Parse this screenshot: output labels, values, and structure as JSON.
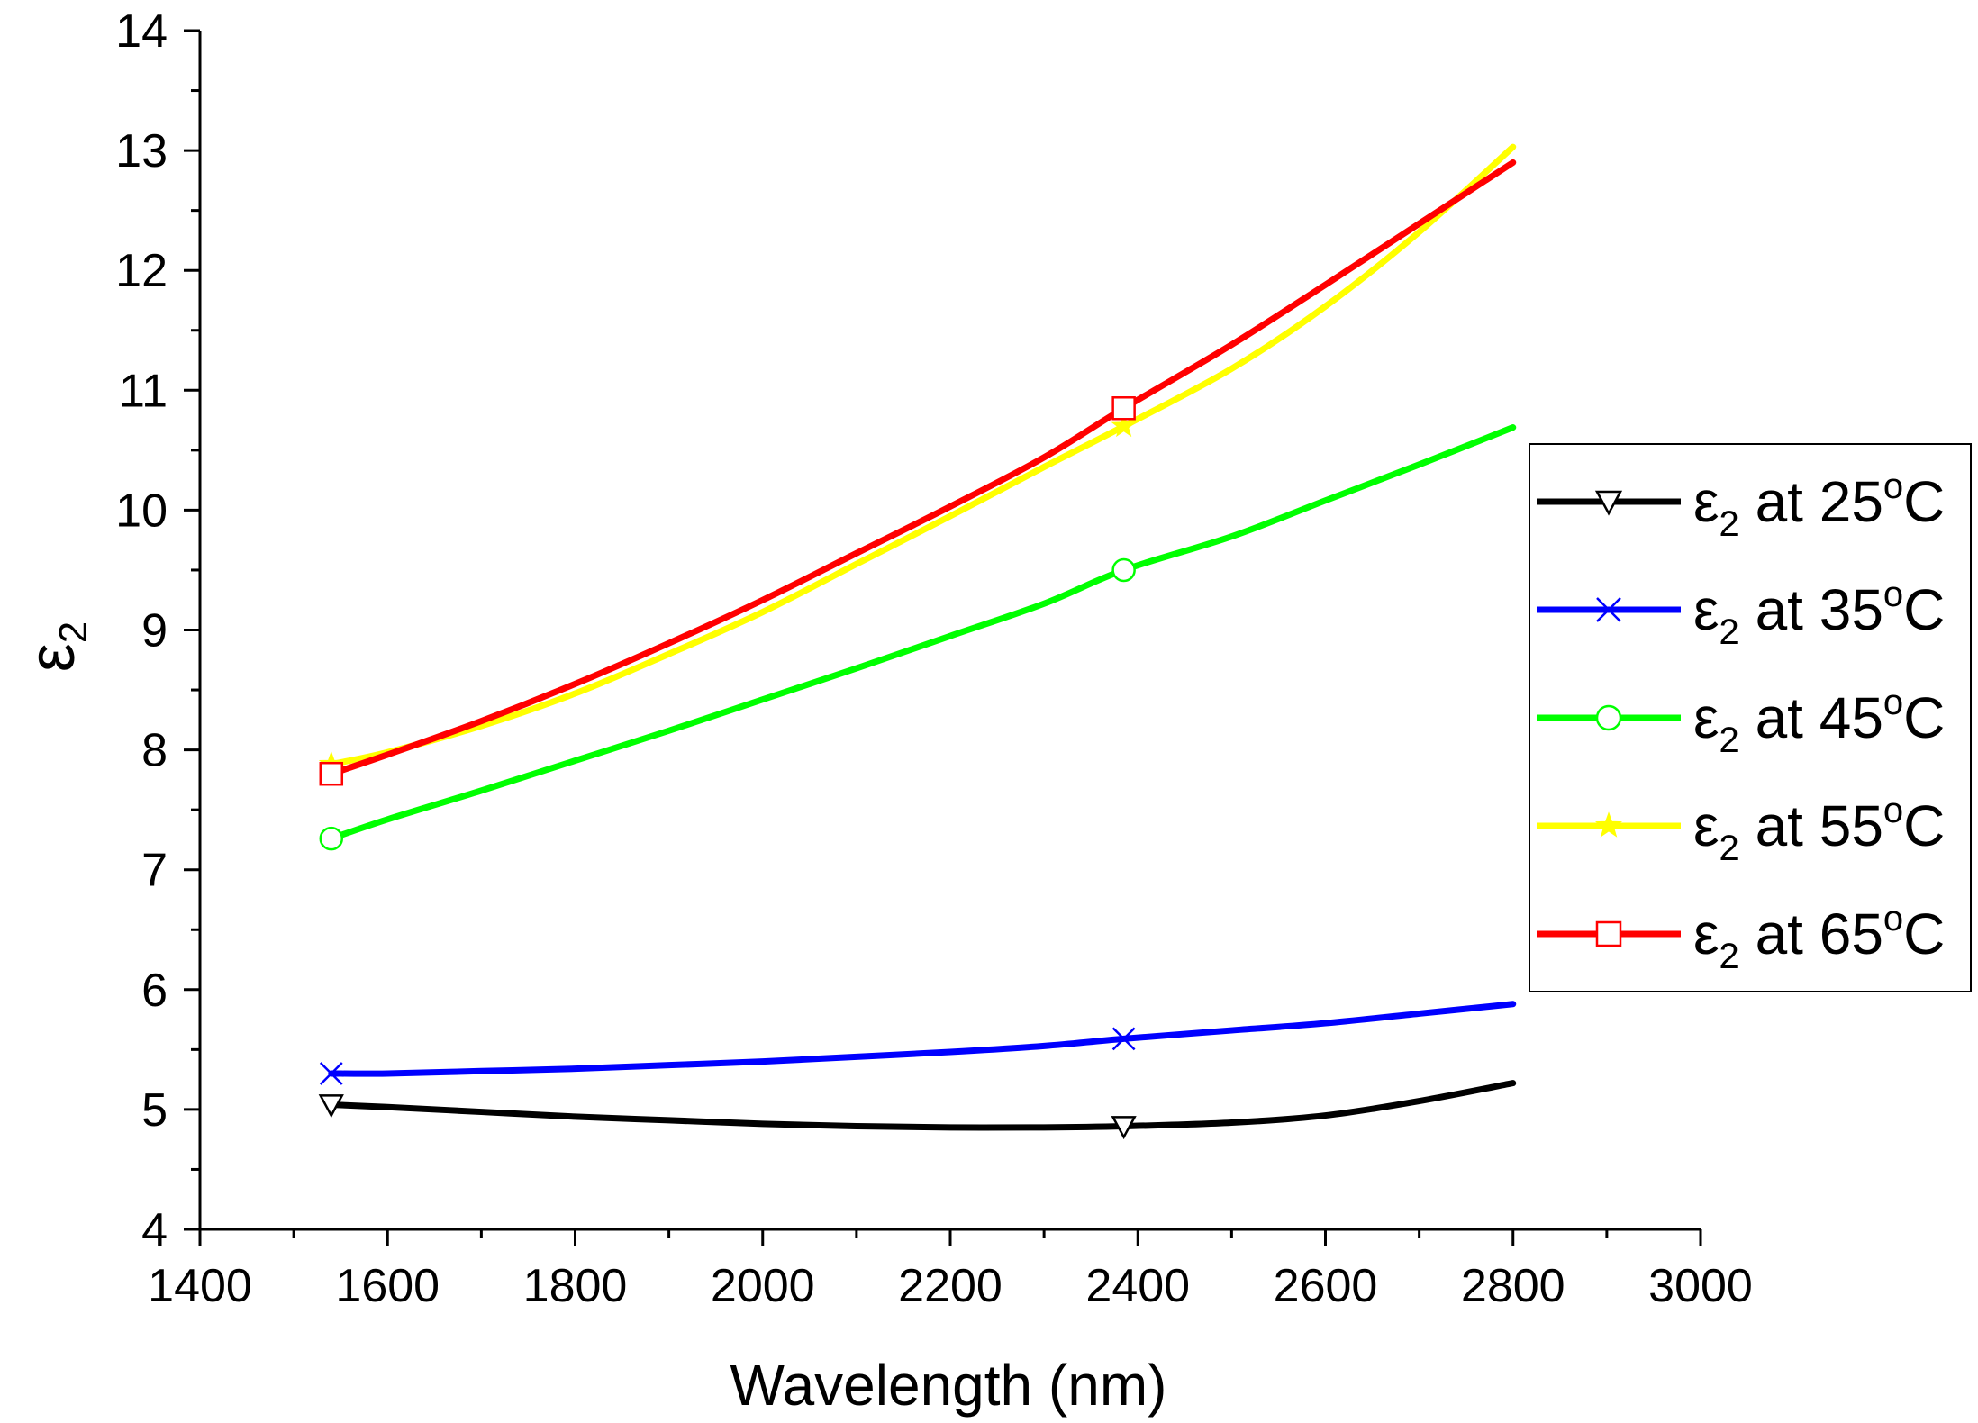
{
  "chart_data": {
    "type": "line",
    "title": "",
    "xlabel": "Wavelength (nm)",
    "ylabel": {
      "main": "ε",
      "sub": "2"
    },
    "xlim": [
      1400,
      3000
    ],
    "ylim": [
      4,
      14
    ],
    "x_ticks": [
      "1400",
      "1600",
      "1800",
      "2000",
      "2200",
      "2400",
      "2600",
      "2800",
      "3000"
    ],
    "y_ticks": [
      "4",
      "5",
      "6",
      "7",
      "8",
      "9",
      "10",
      "11",
      "12",
      "13",
      "14"
    ],
    "x_marker_positions": [
      1540,
      2385
    ],
    "legend_position": "right",
    "series": [
      {
        "name": "ε2 at 25°C",
        "label": {
          "eps": "ε",
          "sub": "2",
          "at": " at 25",
          "deg": "o",
          "unit": "C"
        },
        "color": "#000000",
        "marker": "triangle-down",
        "x": [
          1540,
          1600,
          1700,
          1800,
          1900,
          2000,
          2100,
          2200,
          2300,
          2385,
          2500,
          2600,
          2700,
          2800
        ],
        "values": [
          5.04,
          5.02,
          4.98,
          4.94,
          4.91,
          4.88,
          4.86,
          4.85,
          4.85,
          4.86,
          4.89,
          4.95,
          5.07,
          5.22
        ]
      },
      {
        "name": "ε2 at 35°C",
        "label": {
          "eps": "ε",
          "sub": "2",
          "at": " at 35",
          "deg": "o",
          "unit": "C"
        },
        "color": "#0000ff",
        "marker": "x",
        "x": [
          1540,
          1600,
          1700,
          1800,
          1900,
          2000,
          2100,
          2200,
          2300,
          2385,
          2500,
          2600,
          2700,
          2800
        ],
        "values": [
          5.3,
          5.3,
          5.32,
          5.34,
          5.37,
          5.4,
          5.44,
          5.48,
          5.53,
          5.59,
          5.66,
          5.72,
          5.8,
          5.88
        ]
      },
      {
        "name": "ε2 at 45°C",
        "label": {
          "eps": "ε",
          "sub": "2",
          "at": " at 45",
          "deg": "o",
          "unit": "C"
        },
        "color": "#00ff00",
        "marker": "circle",
        "x": [
          1540,
          1600,
          1700,
          1800,
          1900,
          2000,
          2100,
          2200,
          2300,
          2385,
          2500,
          2600,
          2700,
          2800
        ],
        "values": [
          7.26,
          7.42,
          7.66,
          7.91,
          8.16,
          8.42,
          8.68,
          8.95,
          9.22,
          9.5,
          9.78,
          10.08,
          10.38,
          10.69
        ]
      },
      {
        "name": "ε2 at 55°C",
        "label": {
          "eps": "ε",
          "sub": "2",
          "at": " at 55",
          "deg": "o",
          "unit": "C"
        },
        "color": "#ffff00",
        "marker": "star",
        "x": [
          1540,
          1600,
          1700,
          1800,
          1900,
          2000,
          2100,
          2200,
          2300,
          2385,
          2500,
          2600,
          2700,
          2800
        ],
        "values": [
          7.88,
          7.98,
          8.2,
          8.47,
          8.8,
          9.15,
          9.55,
          9.95,
          10.36,
          10.7,
          11.18,
          11.7,
          12.32,
          13.03
        ]
      },
      {
        "name": "ε2 at 65°C",
        "label": {
          "eps": "ε",
          "sub": "2",
          "at": " at 65",
          "deg": "o",
          "unit": "C"
        },
        "color": "#ff0000",
        "marker": "square",
        "x": [
          1540,
          1600,
          1700,
          1800,
          1900,
          2000,
          2100,
          2200,
          2300,
          2385,
          2500,
          2600,
          2700,
          2800
        ],
        "values": [
          7.8,
          7.96,
          8.24,
          8.55,
          8.89,
          9.25,
          9.64,
          10.03,
          10.44,
          10.85,
          11.38,
          11.88,
          12.39,
          12.9
        ]
      }
    ]
  }
}
